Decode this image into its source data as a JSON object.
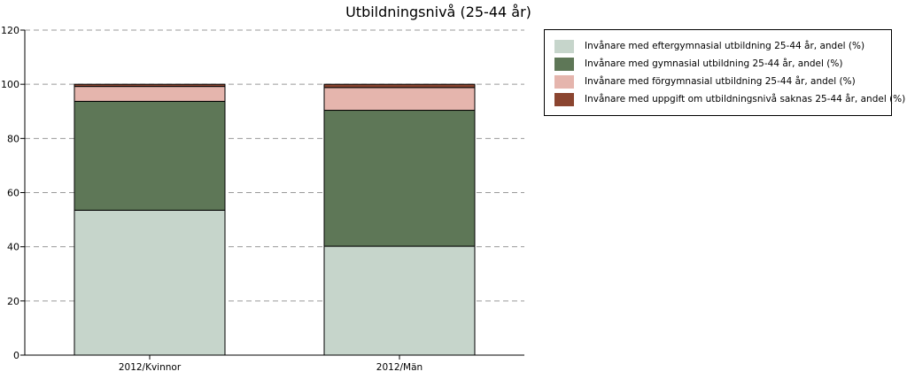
{
  "chart_data": {
    "type": "bar",
    "stacked": true,
    "title": "Utbildningsnivå (25-44 år)",
    "xlabel": "",
    "ylabel": "",
    "categories": [
      "2012/Kvinnor",
      "2012/Män"
    ],
    "ylim": [
      0,
      120
    ],
    "yticks": [
      0,
      20,
      40,
      60,
      80,
      100,
      120
    ],
    "grid": true,
    "legend_position": "right",
    "series": [
      {
        "name": "Invånare med eftergymnasial utbildning 25-44 år, andel (%)",
        "values": [
          53.5,
          40.2
        ],
        "color": "#c6d5cb"
      },
      {
        "name": "Invånare med gymnasial utbildning 25-44 år, andel (%)",
        "values": [
          40.2,
          50.2
        ],
        "color": "#5e7757"
      },
      {
        "name": "Invånare med förgymnasial utbildning 25-44 år, andel (%)",
        "values": [
          5.5,
          8.4
        ],
        "color": "#e5b5ad"
      },
      {
        "name": "Invånare med uppgift om utbildningsnivå saknas 25-44 år, andel (%)",
        "values": [
          0.8,
          1.2
        ],
        "color": "#8b4530"
      }
    ]
  }
}
